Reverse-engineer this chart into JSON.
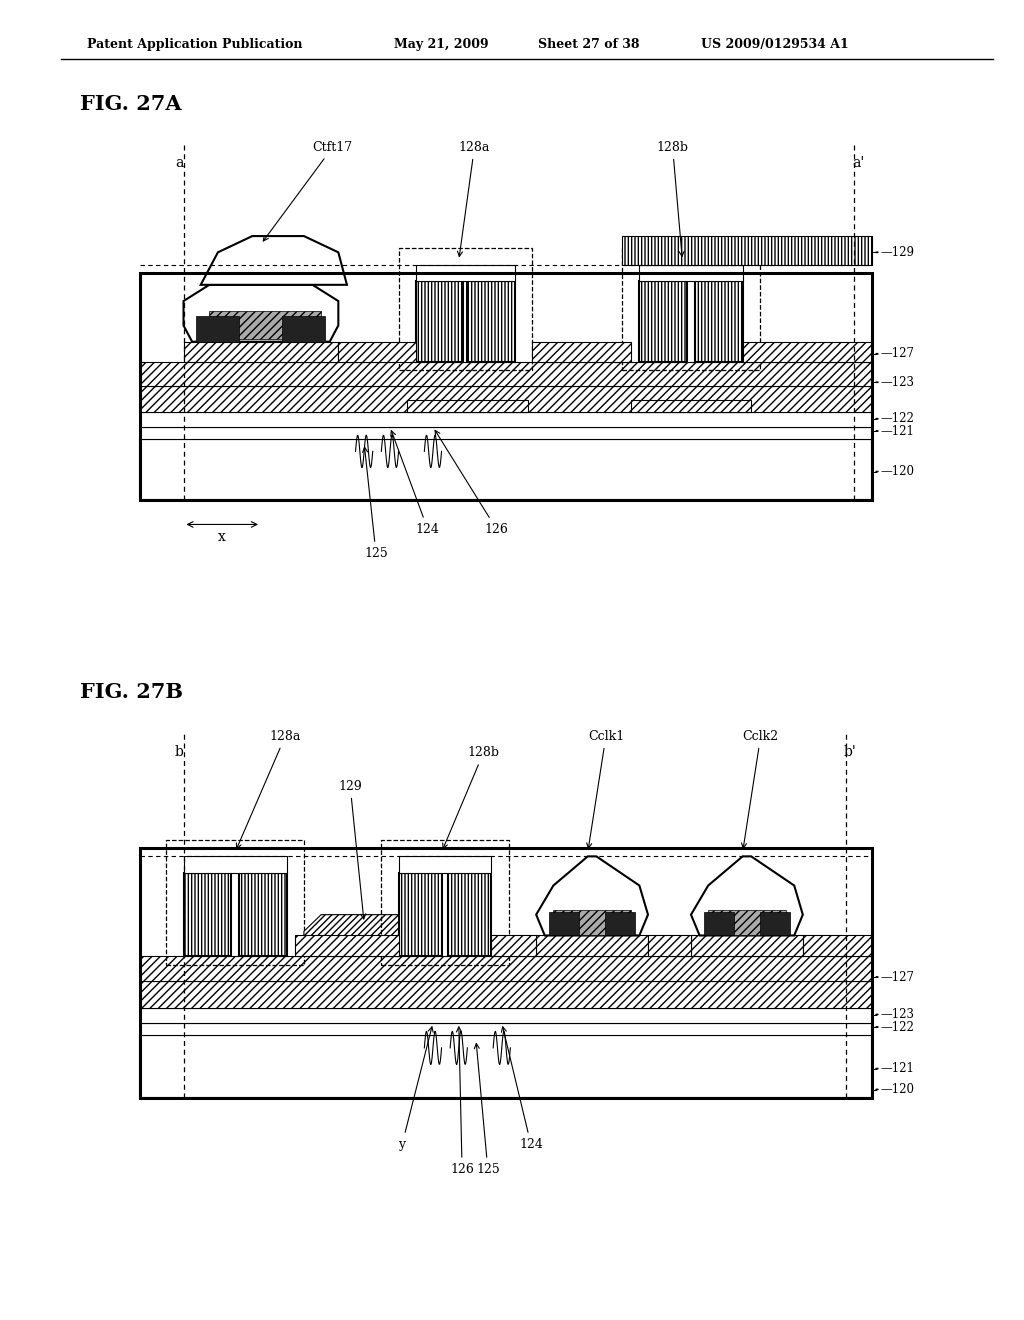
{
  "bg_color": "#ffffff",
  "header_left": "Patent Application Publication",
  "header_mid1": "May 21, 2009",
  "header_mid2": "Sheet 27 of 38",
  "header_right": "US 2009/0129534 A1",
  "fig27a_label": "FIG. 27A",
  "fig27b_label": "FIG. 27B",
  "layer_labels_27a": [
    "129",
    "127",
    "123",
    "122",
    "121",
    "120"
  ],
  "layer_labels_27b": [
    "127",
    "123",
    "122",
    "121",
    "120"
  ]
}
